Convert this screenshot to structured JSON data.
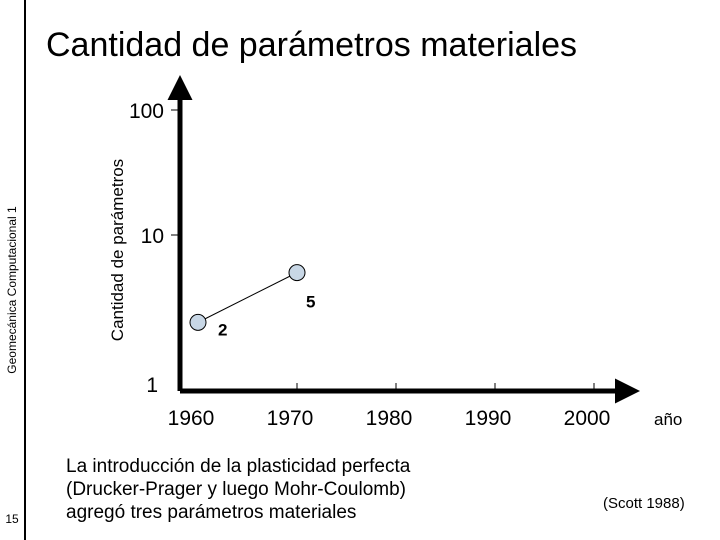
{
  "slide": {
    "title": "Cantidad de parámetros materiales",
    "sidebar_text": "Geomecánica Computacional 1",
    "page_number": "15",
    "note_lines": [
      "La introducción de la plasticidad perfecta",
      "(Drucker-Prager y luego Mohr-Coulomb)",
      "agregó tres parámetros materiales"
    ],
    "citation": "(Scott 1988)"
  },
  "chart_data": {
    "type": "line",
    "ylabel": "Cantidad de parámetros",
    "xlabel": "año",
    "yscale": "log",
    "y_ticks": [
      1,
      10,
      100
    ],
    "y_tick_labels": [
      "1",
      "10",
      "100"
    ],
    "x_ticks": [
      1960,
      1970,
      1980,
      1990,
      2000
    ],
    "x_tick_labels": [
      "1960",
      "1970",
      "1980",
      "1990",
      "2000"
    ],
    "series": [
      {
        "x": [
          1960,
          1970
        ],
        "y": [
          2,
          5
        ],
        "labels": [
          "2",
          "5"
        ]
      }
    ],
    "marker_color": "#c8d7e6",
    "grid": false
  }
}
